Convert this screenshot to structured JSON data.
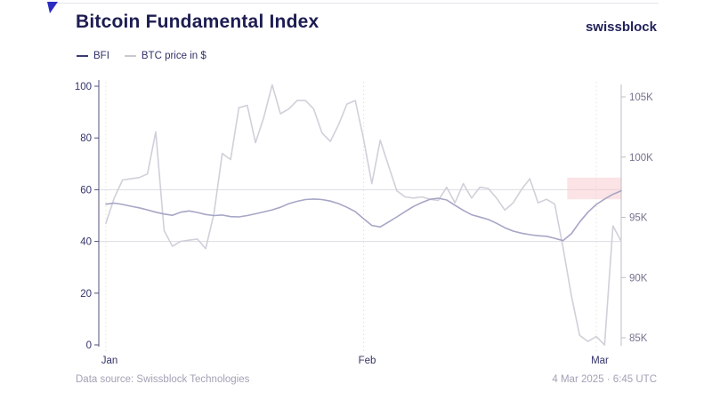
{
  "header": {
    "title": "Bitcoin Fundamental Index",
    "brand": "swissblock"
  },
  "legend": {
    "items": [
      {
        "label": "BFI",
        "swatch_color": "#3c3c78"
      },
      {
        "label": "BTC price in $",
        "swatch_color": "#c9c9d3"
      }
    ]
  },
  "footer": {
    "source": "Data source: Swissblock Technologies",
    "timestamp": "4 Mar 2025 · 6:45 UTC"
  },
  "chart_data": {
    "type": "line",
    "title": "Bitcoin Fundamental Index",
    "x_start": "1 Jan 2025",
    "x_end": "4 Mar 2025",
    "x_ticks": [
      {
        "label": "Jan",
        "day": 0
      },
      {
        "label": "Feb",
        "day": 31
      },
      {
        "label": "Mar",
        "day": 59
      }
    ],
    "left_axis": {
      "name": "BFI index",
      "range": [
        0,
        100
      ],
      "ticks": [
        0,
        20,
        40,
        60,
        80,
        100
      ],
      "gridline_values": [
        40,
        60
      ]
    },
    "right_axis": {
      "name": "BTC price in $",
      "range_k": [
        83.5,
        106.5
      ],
      "ticks": [
        {
          "v": 85,
          "label": "85K"
        },
        {
          "v": 90,
          "label": "90K"
        },
        {
          "v": 95,
          "label": "95K"
        },
        {
          "v": 100,
          "label": "100K"
        },
        {
          "v": 105,
          "label": "105K"
        }
      ]
    },
    "highlight_zone": {
      "axis": "right",
      "start_day": 55.5,
      "price_from_k": 96.5,
      "price_to_k": 98.3,
      "color": "#f8ccd1",
      "opacity": 0.55
    },
    "series": [
      {
        "name": "BTC price in $",
        "axis": "right",
        "color": "#d0d0da",
        "unit": "thousand USD",
        "values": [
          94.5,
          96.6,
          98.1,
          98.2,
          98.3,
          98.6,
          102.1,
          93.9,
          92.6,
          93.0,
          93.1,
          93.2,
          92.4,
          95.3,
          100.3,
          99.8,
          104.1,
          104.3,
          101.2,
          103.3,
          106.0,
          103.6,
          104.0,
          104.7,
          104.7,
          104.0,
          102.0,
          101.3,
          102.7,
          104.4,
          104.7,
          101.5,
          97.8,
          101.4,
          99.3,
          97.2,
          96.7,
          96.6,
          96.7,
          96.5,
          96.4,
          97.5,
          96.2,
          97.8,
          96.6,
          97.5,
          97.4,
          96.6,
          95.6,
          96.2,
          97.3,
          98.2,
          96.2,
          96.5,
          96.1,
          92.5,
          88.5,
          85.2,
          84.7,
          85.1,
          84.4,
          94.3,
          93.0
        ]
      },
      {
        "name": "BFI",
        "axis": "left",
        "color": "#a6a6c6",
        "unit": "index 0-100",
        "values": [
          54.4,
          54.8,
          54.3,
          53.6,
          53.0,
          52.2,
          51.3,
          50.6,
          50.1,
          51.3,
          51.8,
          51.2,
          50.4,
          50.0,
          50.2,
          49.6,
          49.5,
          50.0,
          50.7,
          51.4,
          52.2,
          53.2,
          54.6,
          55.5,
          56.2,
          56.4,
          56.2,
          55.6,
          54.6,
          53.2,
          51.5,
          48.8,
          46.2,
          45.6,
          47.5,
          49.5,
          51.5,
          53.5,
          55.0,
          56.3,
          56.7,
          56.0,
          54.0,
          52.0,
          50.3,
          49.4,
          48.5,
          47.0,
          45.3,
          44.0,
          43.2,
          42.6,
          42.2,
          42.0,
          41.2,
          40.3,
          43.0,
          47.5,
          51.3,
          54.3,
          56.4,
          58.2,
          59.6
        ]
      }
    ],
    "style": {
      "gridline_color": "#dcdce3",
      "left_axis_color": "#50507a",
      "left_tick_label_color": "#34346a",
      "right_axis_color": "#bcbcc9",
      "right_tick_label_color": "#74748f",
      "month_line_color": "#e8e3d5",
      "month_label_color": "#34346a"
    }
  }
}
